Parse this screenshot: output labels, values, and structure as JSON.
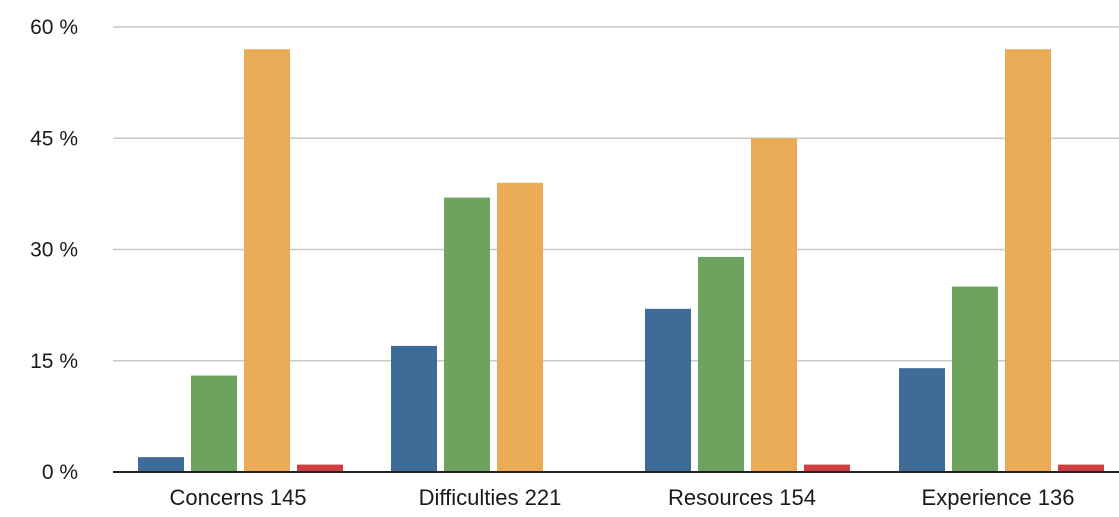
{
  "chart_data": {
    "type": "bar",
    "title": "",
    "xlabel": "",
    "ylabel": "",
    "ylim": [
      0,
      60
    ],
    "y_ticks": [
      {
        "value": 0,
        "label": "0 %"
      },
      {
        "value": 15,
        "label": "15 %"
      },
      {
        "value": 30,
        "label": "30 %"
      },
      {
        "value": 45,
        "label": "45 %"
      },
      {
        "value": 60,
        "label": "60 %"
      }
    ],
    "grid": true,
    "legend": "none",
    "categories": [
      "Concerns 145",
      "Difficulties 221",
      "Resources 154",
      "Experience 136"
    ],
    "series": [
      {
        "color": "#3f6b99",
        "values": [
          2,
          17,
          22,
          14
        ]
      },
      {
        "color": "#6ea25f",
        "values": [
          13,
          37,
          29,
          25
        ]
      },
      {
        "color": "#e9ab55",
        "values": [
          57,
          39,
          45,
          57
        ]
      },
      {
        "color": "#cf3f3f",
        "values": [
          1,
          0,
          1,
          1
        ]
      }
    ]
  }
}
